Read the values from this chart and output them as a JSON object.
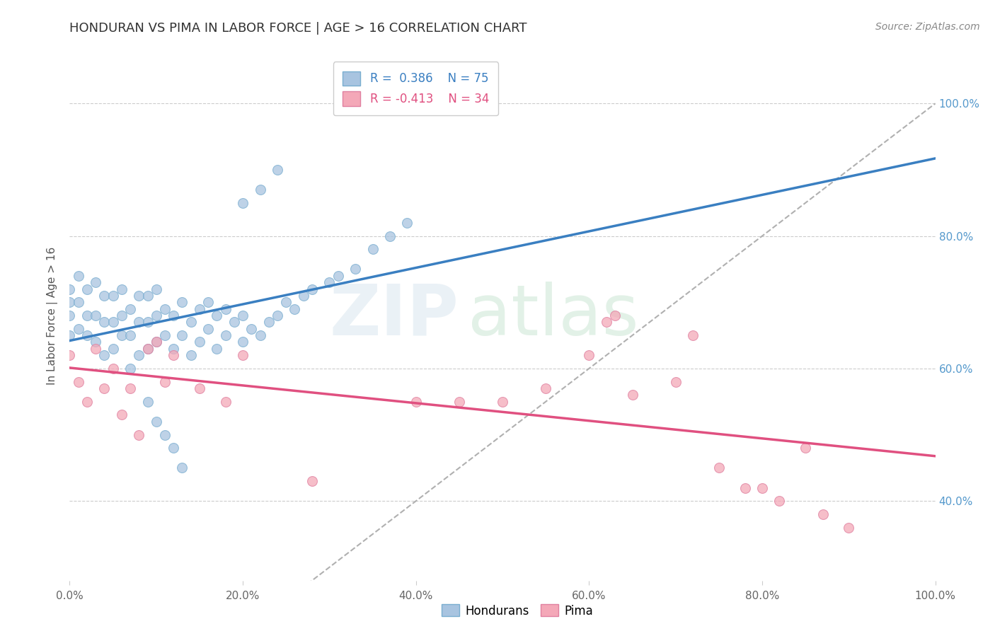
{
  "title": "HONDURAN VS PIMA IN LABOR FORCE | AGE > 16 CORRELATION CHART",
  "source": "Source: ZipAtlas.com",
  "ylabel": "In Labor Force | Age > 16",
  "xlim": [
    0.0,
    1.0
  ],
  "ylim": [
    0.28,
    1.08
  ],
  "x_ticks": [
    0.0,
    0.2,
    0.4,
    0.6,
    0.8,
    1.0
  ],
  "x_tick_labels": [
    "0.0%",
    "20.0%",
    "40.0%",
    "60.0%",
    "80.0%",
    "100.0%"
  ],
  "y_ticks": [
    0.4,
    0.6,
    0.8,
    1.0
  ],
  "y_tick_labels": [
    "40.0%",
    "60.0%",
    "80.0%",
    "100.0%"
  ],
  "hondurans_R": 0.386,
  "hondurans_N": 75,
  "pima_R": -0.413,
  "pima_N": 34,
  "hondurans_color": "#a8c4e0",
  "pima_color": "#f4a8b8",
  "hondurans_line_color": "#3a7fc1",
  "pima_line_color": "#e05080",
  "dashed_line_color": "#b0b0b0",
  "background_color": "#ffffff",
  "hondurans_x": [
    0.0,
    0.0,
    0.0,
    0.0,
    0.01,
    0.01,
    0.01,
    0.02,
    0.02,
    0.02,
    0.03,
    0.03,
    0.03,
    0.04,
    0.04,
    0.04,
    0.05,
    0.05,
    0.05,
    0.06,
    0.06,
    0.06,
    0.07,
    0.07,
    0.07,
    0.08,
    0.08,
    0.08,
    0.09,
    0.09,
    0.09,
    0.1,
    0.1,
    0.1,
    0.11,
    0.11,
    0.12,
    0.12,
    0.13,
    0.13,
    0.14,
    0.14,
    0.15,
    0.15,
    0.16,
    0.16,
    0.17,
    0.17,
    0.18,
    0.18,
    0.19,
    0.2,
    0.2,
    0.21,
    0.22,
    0.23,
    0.24,
    0.25,
    0.26,
    0.27,
    0.28,
    0.3,
    0.31,
    0.33,
    0.35,
    0.37,
    0.39,
    0.2,
    0.22,
    0.24,
    0.09,
    0.1,
    0.11,
    0.12,
    0.13
  ],
  "hondurans_y": [
    0.68,
    0.72,
    0.65,
    0.7,
    0.66,
    0.7,
    0.74,
    0.65,
    0.68,
    0.72,
    0.64,
    0.68,
    0.73,
    0.62,
    0.67,
    0.71,
    0.63,
    0.67,
    0.71,
    0.65,
    0.68,
    0.72,
    0.6,
    0.65,
    0.69,
    0.62,
    0.67,
    0.71,
    0.63,
    0.67,
    0.71,
    0.64,
    0.68,
    0.72,
    0.65,
    0.69,
    0.63,
    0.68,
    0.65,
    0.7,
    0.62,
    0.67,
    0.64,
    0.69,
    0.66,
    0.7,
    0.63,
    0.68,
    0.65,
    0.69,
    0.67,
    0.64,
    0.68,
    0.66,
    0.65,
    0.67,
    0.68,
    0.7,
    0.69,
    0.71,
    0.72,
    0.73,
    0.74,
    0.75,
    0.78,
    0.8,
    0.82,
    0.85,
    0.87,
    0.9,
    0.55,
    0.52,
    0.5,
    0.48,
    0.45
  ],
  "pima_x": [
    0.0,
    0.01,
    0.02,
    0.03,
    0.04,
    0.05,
    0.06,
    0.07,
    0.08,
    0.09,
    0.1,
    0.11,
    0.12,
    0.15,
    0.18,
    0.2,
    0.28,
    0.4,
    0.45,
    0.5,
    0.55,
    0.6,
    0.62,
    0.63,
    0.65,
    0.7,
    0.72,
    0.75,
    0.78,
    0.8,
    0.82,
    0.85,
    0.87,
    0.9
  ],
  "pima_y": [
    0.62,
    0.58,
    0.55,
    0.63,
    0.57,
    0.6,
    0.53,
    0.57,
    0.5,
    0.63,
    0.64,
    0.58,
    0.62,
    0.57,
    0.55,
    0.62,
    0.43,
    0.55,
    0.55,
    0.55,
    0.57,
    0.62,
    0.67,
    0.68,
    0.56,
    0.58,
    0.65,
    0.45,
    0.42,
    0.42,
    0.4,
    0.48,
    0.38,
    0.36
  ]
}
